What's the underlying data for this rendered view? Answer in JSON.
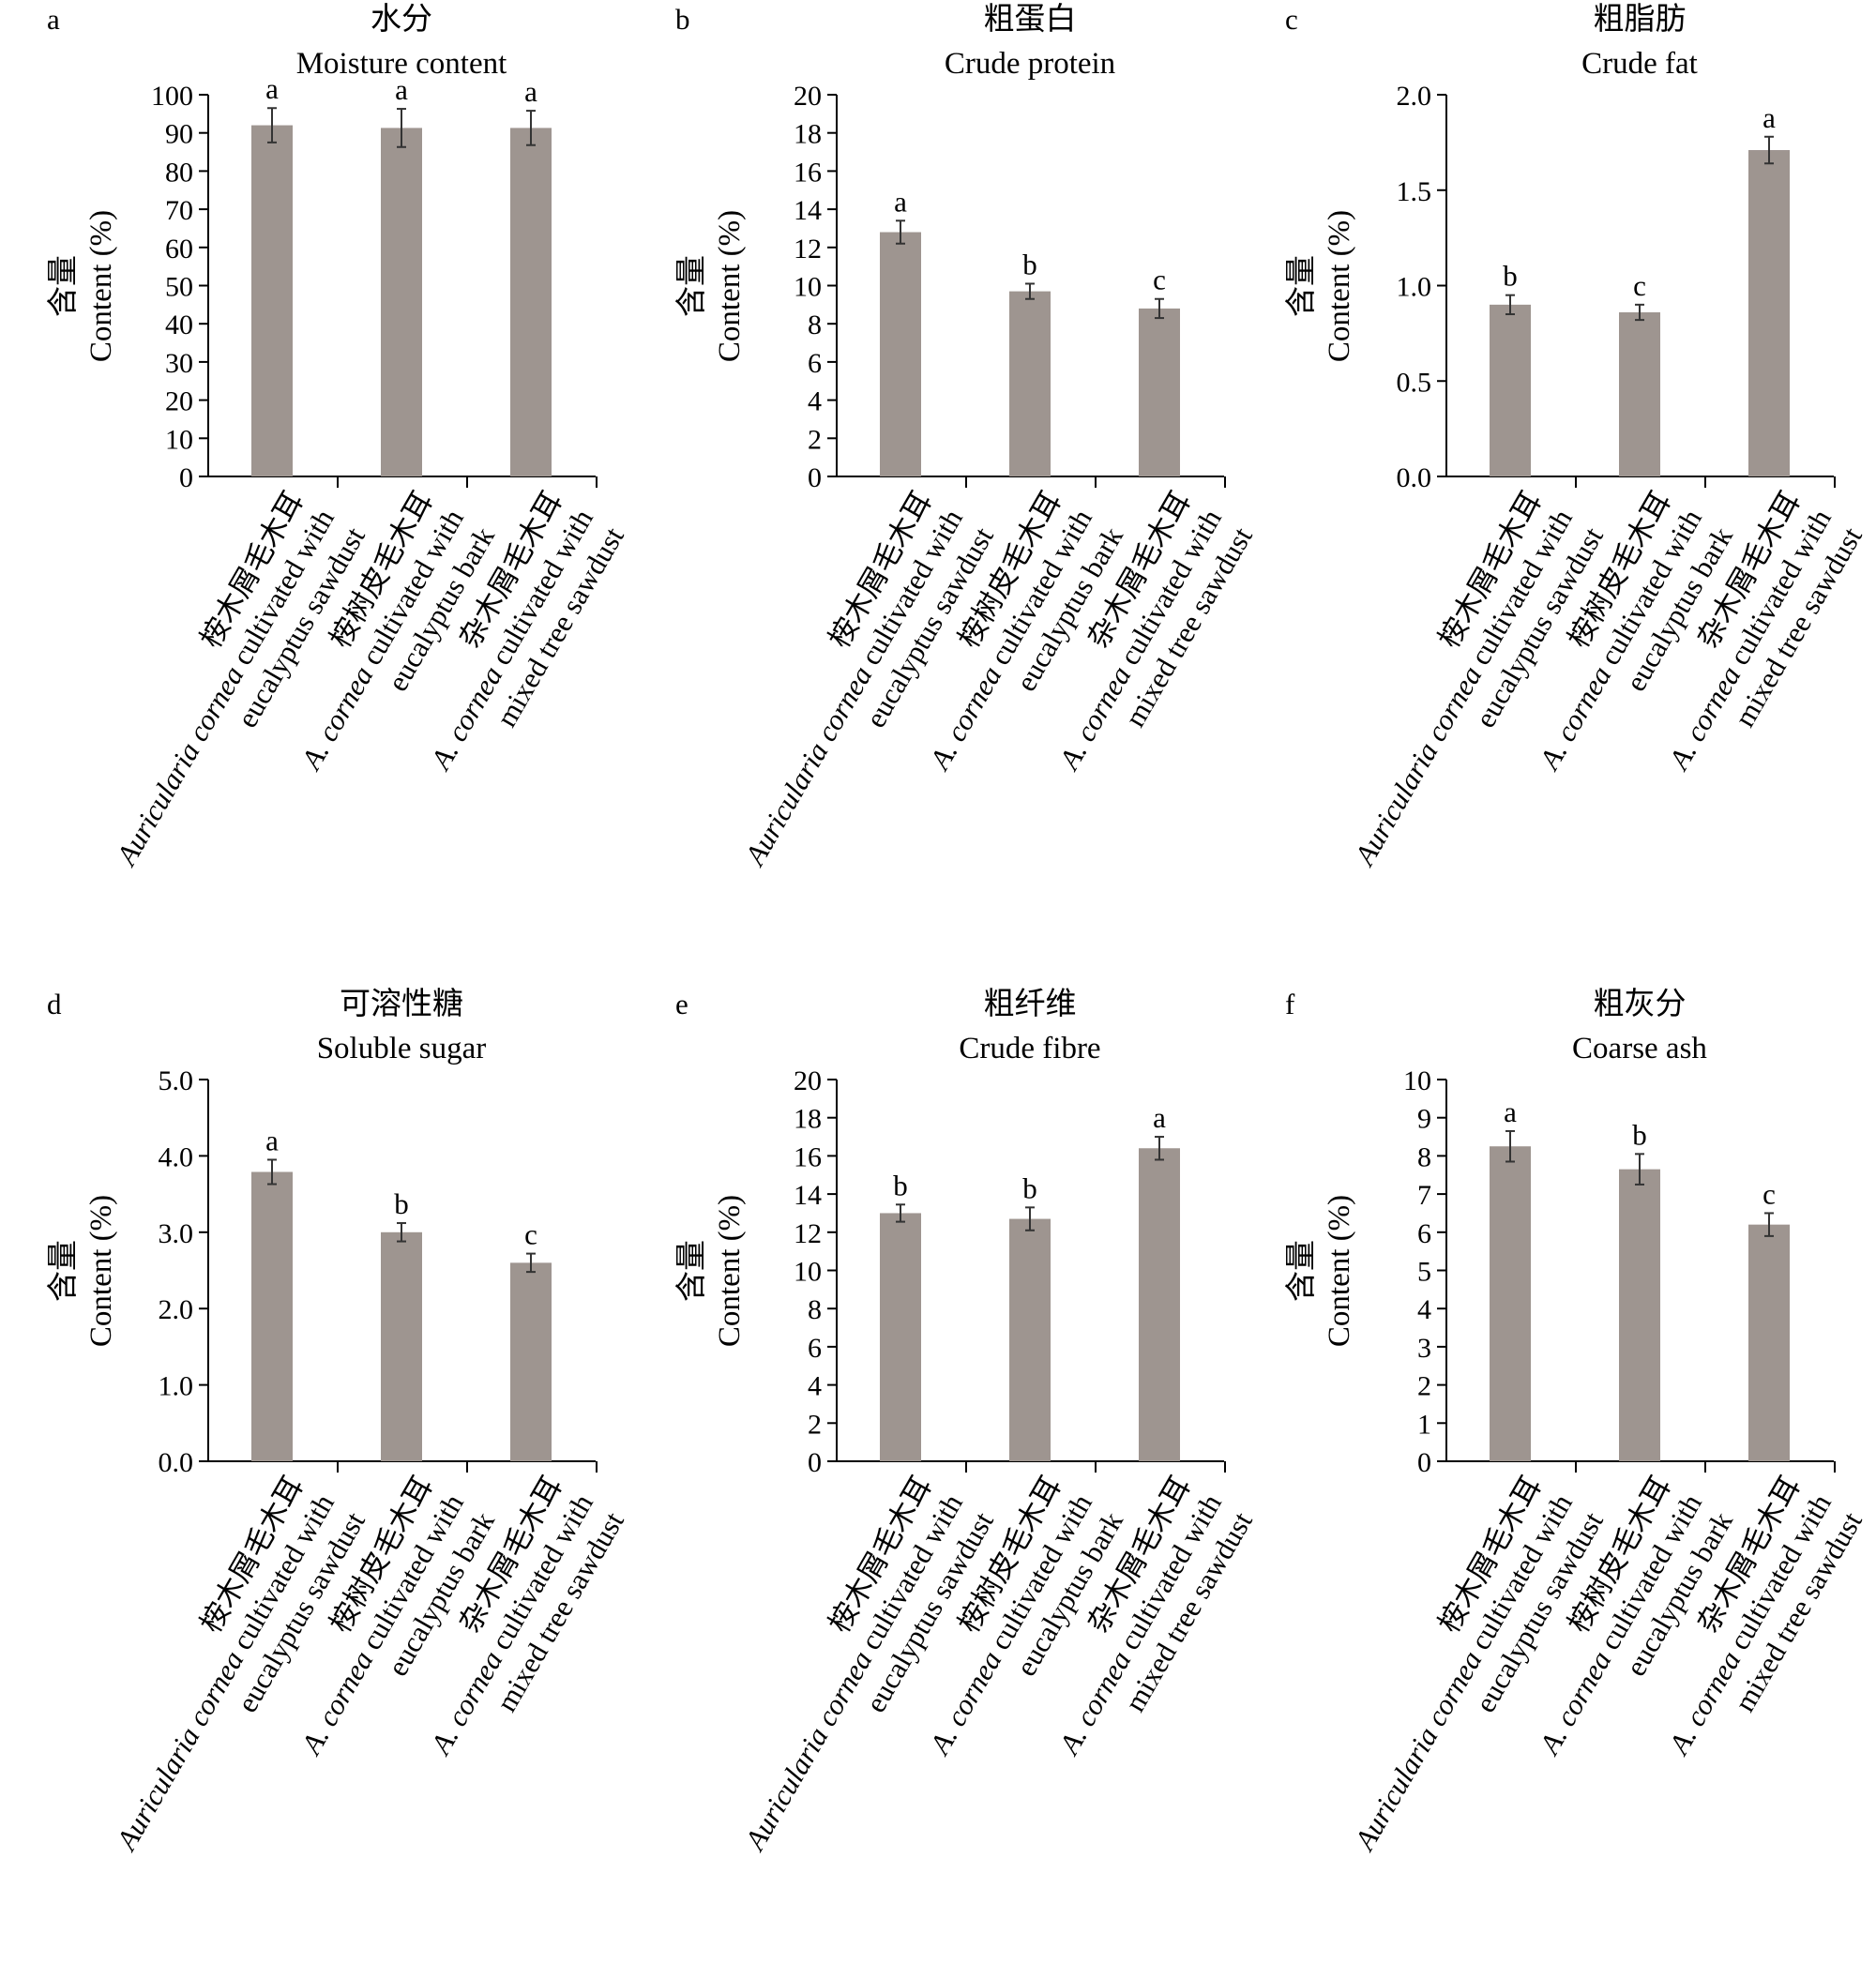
{
  "figure": {
    "bar_color": "#9e9590",
    "axis_color": "#000000",
    "categories_shared": [
      {
        "cn": "桉木屑毛木耳",
        "en_italic": "Auricularia cornea",
        "en_rest": " cultivated with",
        "en_line3": "eucalyptus sawdust"
      },
      {
        "cn": "桉树皮毛木耳",
        "en_italic": "A. cornea",
        "en_rest": " cultivated with",
        "en_line3": "eucalyptus bark"
      },
      {
        "cn": "杂木屑毛木耳",
        "en_italic": "A. cornea",
        "en_rest": " cultivated with",
        "en_line3": "mixed tree sawdust"
      }
    ],
    "ylabel_cn": "含量",
    "ylabel_en": "Content (%)"
  },
  "chart_data": [
    {
      "type": "bar",
      "panel": "a",
      "title_cn": "水分",
      "title_en": "Moisture content",
      "categories": [
        "桉木屑毛木耳 Auricularia cornea cultivated with eucalyptus sawdust",
        "桉树皮毛木耳 A. cornea cultivated with eucalyptus bark",
        "杂木屑毛木耳 A. cornea cultivated with mixed tree sawdust"
      ],
      "values": [
        92,
        91.3,
        91.3
      ],
      "errors": [
        4.5,
        5.0,
        4.5
      ],
      "letters": [
        "a",
        "a",
        "a"
      ],
      "ylabel": "含量 Content (%)",
      "ylim": [
        0,
        100
      ],
      "ticks": [
        0,
        10,
        20,
        30,
        40,
        50,
        60,
        70,
        80,
        90,
        100
      ],
      "decimals": 0
    },
    {
      "type": "bar",
      "panel": "b",
      "title_cn": "粗蛋白",
      "title_en": "Crude protein",
      "categories": [
        "桉木屑毛木耳 Auricularia cornea cultivated with eucalyptus sawdust",
        "桉树皮毛木耳 A. cornea cultivated with eucalyptus bark",
        "杂木屑毛木耳 A. cornea cultivated with mixed tree sawdust"
      ],
      "values": [
        12.8,
        9.7,
        8.8
      ],
      "errors": [
        0.6,
        0.4,
        0.5
      ],
      "letters": [
        "a",
        "b",
        "c"
      ],
      "ylabel": "含量 Content (%)",
      "ylim": [
        0,
        20
      ],
      "ticks": [
        0,
        2,
        4,
        6,
        8,
        10,
        12,
        14,
        16,
        18,
        20
      ],
      "decimals": 0
    },
    {
      "type": "bar",
      "panel": "c",
      "title_cn": "粗脂肪",
      "title_en": "Crude fat",
      "categories": [
        "桉木屑毛木耳 Auricularia cornea cultivated with eucalyptus sawdust",
        "桉树皮毛木耳 A. cornea cultivated with eucalyptus bark",
        "杂木屑毛木耳 A. cornea cultivated with mixed tree sawdust"
      ],
      "values": [
        0.9,
        0.86,
        1.71
      ],
      "errors": [
        0.05,
        0.04,
        0.07
      ],
      "letters": [
        "b",
        "c",
        "a"
      ],
      "ylabel": "含量 Content (%)",
      "ylim": [
        0,
        2
      ],
      "ticks": [
        0,
        0.5,
        1,
        1.5,
        2
      ],
      "decimals": 1
    },
    {
      "type": "bar",
      "panel": "d",
      "title_cn": "可溶性糖",
      "title_en": "Soluble sugar",
      "categories": [
        "桉木屑毛木耳 Auricularia cornea cultivated with eucalyptus sawdust",
        "桉树皮毛木耳 A. cornea cultivated with eucalyptus bark",
        "杂木屑毛木耳 A. cornea cultivated with mixed tree sawdust"
      ],
      "values": [
        3.79,
        3.0,
        2.6
      ],
      "errors": [
        0.16,
        0.12,
        0.12
      ],
      "letters": [
        "a",
        "b",
        "c"
      ],
      "ylabel": "含量 Content (%)",
      "ylim": [
        0,
        5
      ],
      "ticks": [
        0,
        1,
        2,
        3,
        4,
        5
      ],
      "decimals": 1
    },
    {
      "type": "bar",
      "panel": "e",
      "title_cn": "粗纤维",
      "title_en": "Crude fibre",
      "categories": [
        "桉木屑毛木耳 Auricularia cornea cultivated with eucalyptus sawdust",
        "桉树皮毛木耳 A. cornea cultivated with eucalyptus bark",
        "杂木屑毛木耳 A. cornea cultivated with mixed tree sawdust"
      ],
      "values": [
        13.0,
        12.7,
        16.4
      ],
      "errors": [
        0.45,
        0.6,
        0.6
      ],
      "letters": [
        "b",
        "b",
        "a"
      ],
      "ylabel": "含量 Content (%)",
      "ylim": [
        0,
        20
      ],
      "ticks": [
        0,
        2,
        4,
        6,
        8,
        10,
        12,
        14,
        16,
        18,
        20
      ],
      "decimals": 0
    },
    {
      "type": "bar",
      "panel": "f",
      "title_cn": "粗灰分",
      "title_en": "Coarse ash",
      "categories": [
        "桉木屑毛木耳 Auricularia cornea cultivated with eucalyptus sawdust",
        "桉树皮毛木耳 A. cornea cultivated with eucalyptus bark",
        "杂木屑毛木耳 A. cornea cultivated with mixed tree sawdust"
      ],
      "values": [
        8.25,
        7.65,
        6.2
      ],
      "errors": [
        0.4,
        0.4,
        0.3
      ],
      "letters": [
        "a",
        "b",
        "c"
      ],
      "ylabel": "含量 Content (%)",
      "ylim": [
        0,
        10
      ],
      "ticks": [
        0,
        1,
        2,
        3,
        4,
        5,
        6,
        7,
        8,
        9,
        10
      ],
      "decimals": 0
    }
  ]
}
